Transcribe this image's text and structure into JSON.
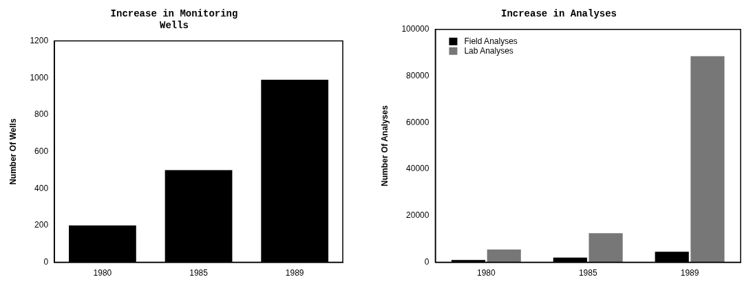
{
  "chart_data": [
    {
      "type": "bar",
      "title": "Increase in Monitoring\nWells",
      "ylabel": "Number Of Wells",
      "categories": [
        "1980",
        "1985",
        "1989"
      ],
      "values": [
        200,
        500,
        990
      ],
      "color": "#000000",
      "ylim": [
        0,
        1200
      ],
      "yticks": [
        0,
        200,
        400,
        600,
        800,
        1000,
        1200
      ],
      "grid": false,
      "legend": false
    },
    {
      "type": "bar",
      "title": "Increase in Analyses",
      "ylabel": "Number Of Analyses",
      "categories": [
        "1980",
        "1985",
        "1989"
      ],
      "series": [
        {
          "name": "Field Analyses",
          "color": "#000000",
          "values": [
            1000,
            2000,
            4500
          ]
        },
        {
          "name": "Lab Analyses",
          "color": "#777777",
          "values": [
            5500,
            12500,
            88500
          ]
        }
      ],
      "ylim": [
        0,
        100000
      ],
      "yticks": [
        0,
        20000,
        40000,
        60000,
        80000,
        100000
      ],
      "grid": false,
      "legend": "top left"
    }
  ]
}
